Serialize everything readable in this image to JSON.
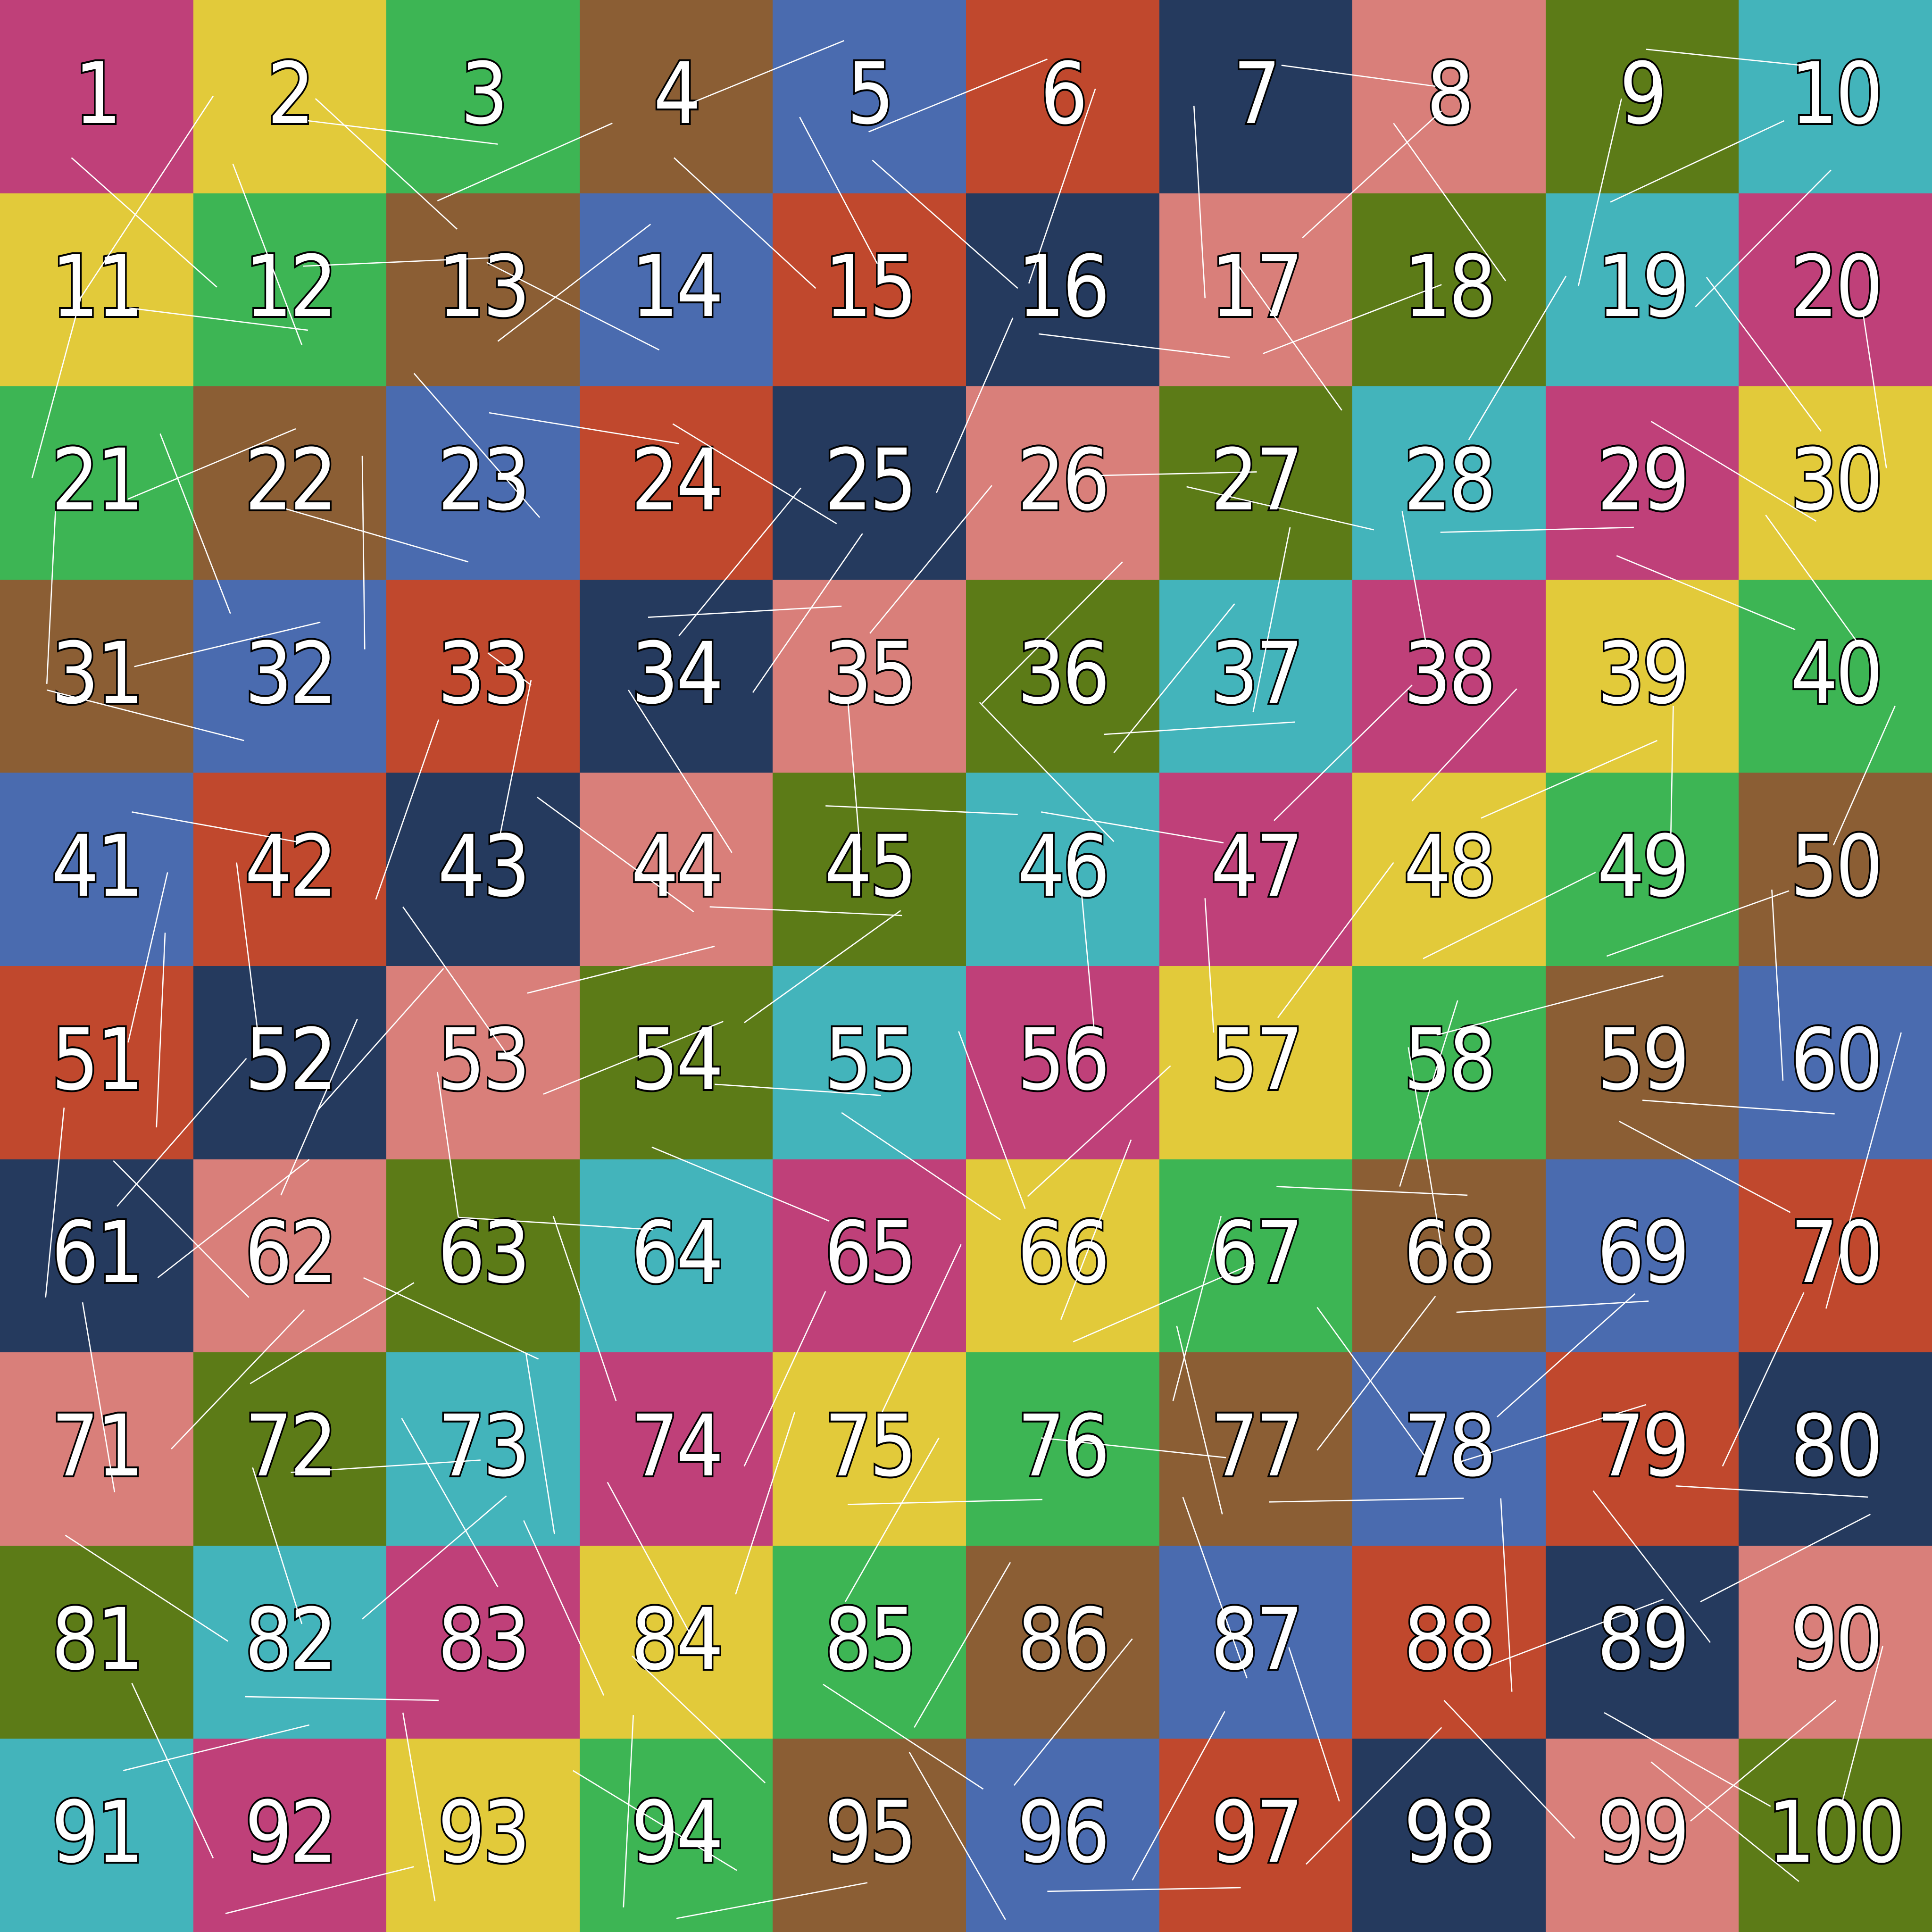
{
  "palette": [
    "#BF4079",
    "#E2CA3A",
    "#3DB554",
    "#8B5E34",
    "#4A6BAF",
    "#C0482D",
    "#253A5E",
    "#D97F7A",
    "#5C7B17",
    "#43B4BB"
  ],
  "cells": [
    "1",
    "2",
    "3",
    "4",
    "5",
    "6",
    "7",
    "8",
    "9",
    "10",
    "11",
    "12",
    "13",
    "14",
    "15",
    "16",
    "17",
    "18",
    "19",
    "20",
    "21",
    "22",
    "23",
    "24",
    "25",
    "26",
    "27",
    "28",
    "29",
    "30",
    "31",
    "32",
    "33",
    "34",
    "35",
    "36",
    "37",
    "38",
    "39",
    "40",
    "41",
    "42",
    "43",
    "44",
    "45",
    "46",
    "47",
    "48",
    "49",
    "50",
    "51",
    "52",
    "53",
    "54",
    "55",
    "56",
    "57",
    "58",
    "59",
    "60",
    "61",
    "62",
    "63",
    "64",
    "65",
    "66",
    "67",
    "68",
    "69",
    "70",
    "71",
    "72",
    "73",
    "74",
    "75",
    "76",
    "77",
    "78",
    "79",
    "80",
    "81",
    "82",
    "83",
    "84",
    "85",
    "86",
    "87",
    "88",
    "89",
    "90",
    "91",
    "92",
    "93",
    "94",
    "95",
    "96",
    "97",
    "98",
    "99",
    "100"
  ]
}
